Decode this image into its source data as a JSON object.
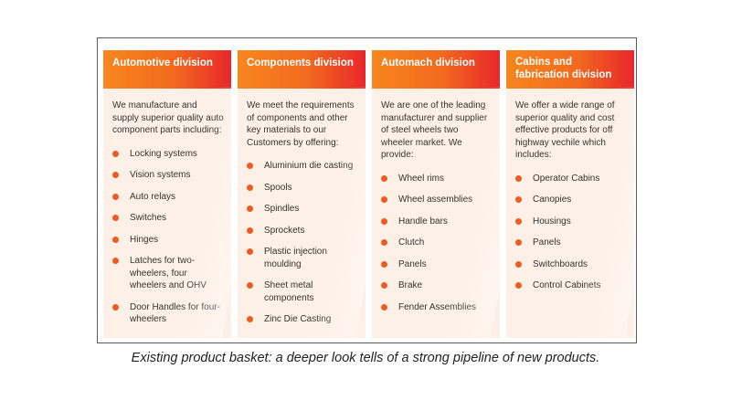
{
  "divisions": [
    {
      "title": "Automotive division",
      "intro": "We manufacture and supply superior quality auto component parts including:",
      "items": [
        "Locking systems",
        "Vision systems",
        "Auto relays",
        "Switches",
        "Hinges",
        "Latches for two-wheelers, four wheelers and OHV",
        "Door Handles for four-wheelers"
      ]
    },
    {
      "title": "Components division",
      "intro": "We meet the requirements of components and other key materials to our Customers by offering:",
      "items": [
        "Aluminium die casting",
        "Spools",
        "Spindles",
        "Sprockets",
        "Plastic injection moulding",
        "Sheet metal components",
        "Zinc Die Casting"
      ]
    },
    {
      "title": "Automach division",
      "intro": "We are one of the leading manufacturer and supplier of steel wheels two wheeler market. We provide:",
      "items": [
        "Wheel rims",
        "Wheel assemblies",
        "Handle bars",
        "Clutch",
        "Panels",
        "Brake",
        "Fender Assemblies"
      ]
    },
    {
      "title": "Cabins and fabrication division",
      "intro": "We offer a wide range of superior quality and cost effective products for off highway vechile which includes:",
      "items": [
        "Operator Cabins",
        "Canopies",
        "Housings",
        "Panels",
        "Switchboards",
        "Control Cabinets"
      ]
    }
  ],
  "caption": "Existing product basket: a deeper look tells of a strong pipeline of new products.",
  "colors": {
    "header_start": "#f7861e",
    "header_end": "#e9272b",
    "bullet": "#ee5a22",
    "column_bg": "#fdf0e6"
  }
}
